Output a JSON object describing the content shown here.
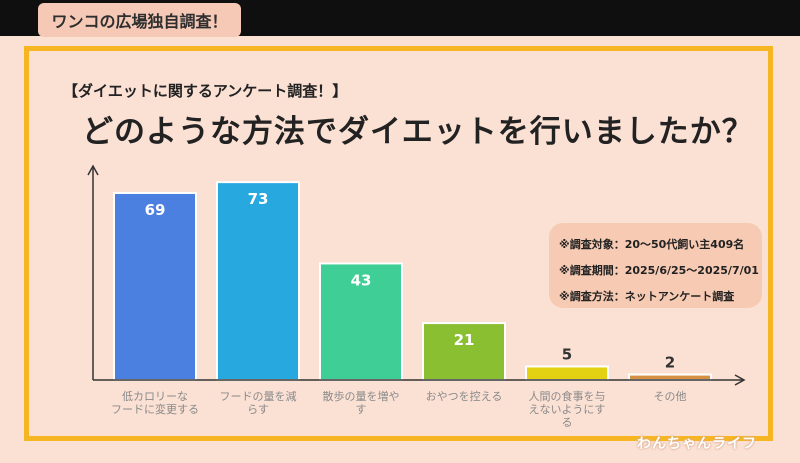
{
  "header": {
    "brand_tab": "ワンコの広場独自調査！"
  },
  "survey": {
    "eyebrow": "【ダイエットに関するアンケート調査！】",
    "question": "どのような方法でダイエットを行いましたか？"
  },
  "notes": [
    "※調査対象：20〜50代飼い主409名",
    "※調査期間：2025/6/25〜2025/7/01",
    "※調査方法：ネットアンケート調査"
  ],
  "logo": "わんちゃんライフ",
  "chart_data": {
    "type": "bar",
    "categories": [
      [
        "低カロリーな",
        "フードに変更する"
      ],
      [
        "フードの量を減",
        "らす"
      ],
      [
        "散歩の量を増や",
        "す"
      ],
      [
        "おやつを控える"
      ],
      [
        "人間の食事を与",
        "えないようにす",
        "る"
      ],
      [
        "その他"
      ]
    ],
    "values": [
      69,
      73,
      43,
      21,
      5,
      2
    ],
    "colors": [
      "#4b7fe0",
      "#27a8df",
      "#3fcf96",
      "#8bbf32",
      "#e3d214",
      "#d59043"
    ],
    "ylim": [
      0,
      76
    ],
    "grid": false,
    "legend": "none",
    "value_label_inside": [
      true,
      true,
      true,
      true,
      false,
      false
    ],
    "axis_color": "#333333",
    "tick_label_color": "#8a8a8a"
  }
}
